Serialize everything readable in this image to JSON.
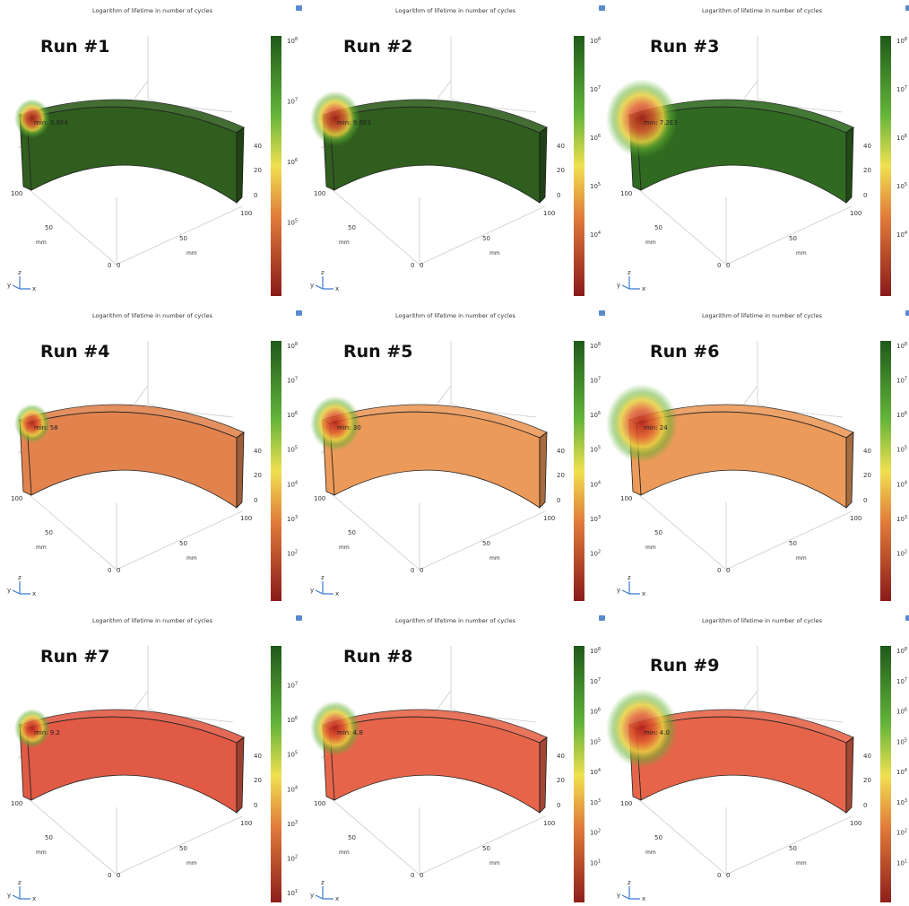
{
  "axes": {
    "z_ticks": [
      "40",
      "20",
      "0"
    ],
    "y_ticks": [
      "100",
      "50",
      "0"
    ],
    "x_ticks": [
      "0",
      "50",
      "100"
    ],
    "unit": "mm",
    "triad": [
      "y",
      "z",
      "x"
    ]
  },
  "panels": [
    {
      "title": "Logarithm of lifetime in number of cycles",
      "run": "Run #1",
      "min": "min: 3.8E4",
      "color": "#2f5e1e",
      "hot": 0.3,
      "ticks": [
        {
          "base": "10",
          "exp": "8"
        },
        {
          "base": "10",
          "exp": "7"
        },
        {
          "base": "10",
          "exp": "6"
        },
        {
          "base": "10",
          "exp": "5"
        }
      ]
    },
    {
      "title": "Logarithm of lifetime in number of cycles",
      "run": "Run #2",
      "min": "min: 9.6E3",
      "color": "#2f5e1e",
      "hot": 0.5,
      "ticks": [
        {
          "base": "10",
          "exp": "8"
        },
        {
          "base": "10",
          "exp": "7"
        },
        {
          "base": "10",
          "exp": "6"
        },
        {
          "base": "10",
          "exp": "5"
        },
        {
          "base": "10",
          "exp": "4"
        }
      ]
    },
    {
      "title": "Logarithm of lifetime in number of cycles",
      "run": "Run #3",
      "min": "min: 7.2E3",
      "color": "#2f6a20",
      "hot": 0.8,
      "ticks": [
        {
          "base": "10",
          "exp": "8"
        },
        {
          "base": "10",
          "exp": "7"
        },
        {
          "base": "10",
          "exp": "6"
        },
        {
          "base": "10",
          "exp": "5"
        },
        {
          "base": "10",
          "exp": "4"
        }
      ]
    },
    {
      "title": "Logarithm of lifetime in number of cycles",
      "run": "Run #4",
      "min": "min: 58",
      "color": "#e2834e",
      "hot": 0.3,
      "ticks": [
        {
          "base": "10",
          "exp": "8"
        },
        {
          "base": "10",
          "exp": "7"
        },
        {
          "base": "10",
          "exp": "6"
        },
        {
          "base": "10",
          "exp": "5"
        },
        {
          "base": "10",
          "exp": "4"
        },
        {
          "base": "10",
          "exp": "3"
        },
        {
          "base": "10",
          "exp": "2"
        }
      ]
    },
    {
      "title": "Logarithm of lifetime in number of cycles",
      "run": "Run #5",
      "min": "min: 30",
      "color": "#ec9a5a",
      "hot": 0.5,
      "ticks": [
        {
          "base": "10",
          "exp": "8"
        },
        {
          "base": "10",
          "exp": "7"
        },
        {
          "base": "10",
          "exp": "6"
        },
        {
          "base": "10",
          "exp": "5"
        },
        {
          "base": "10",
          "exp": "4"
        },
        {
          "base": "10",
          "exp": "3"
        },
        {
          "base": "10",
          "exp": "2"
        }
      ]
    },
    {
      "title": "Logarithm of lifetime in number of cycles",
      "run": "Run #6",
      "min": "min: 24",
      "color": "#ec9a5a",
      "hot": 0.8,
      "ticks": [
        {
          "base": "10",
          "exp": "8"
        },
        {
          "base": "10",
          "exp": "7"
        },
        {
          "base": "10",
          "exp": "6"
        },
        {
          "base": "10",
          "exp": "5"
        },
        {
          "base": "10",
          "exp": "4"
        },
        {
          "base": "10",
          "exp": "3"
        },
        {
          "base": "10",
          "exp": "2"
        }
      ]
    },
    {
      "title": "Logarithm of lifetime in number of cycles",
      "run": "Run #7",
      "min": "min: 9.2",
      "color": "#e05a45",
      "hot": 0.3,
      "ticks": [
        {
          "base": "10",
          "exp": "7"
        },
        {
          "base": "10",
          "exp": "6"
        },
        {
          "base": "10",
          "exp": "5"
        },
        {
          "base": "10",
          "exp": "4"
        },
        {
          "base": "10",
          "exp": "3"
        },
        {
          "base": "10",
          "exp": "2"
        },
        {
          "base": "10",
          "exp": "1"
        }
      ]
    },
    {
      "title": "Logarithm of lifetime in number of cycles",
      "run": "Run #8",
      "min": "min: 4.8",
      "color": "#e6654a",
      "hot": 0.5,
      "ticks": [
        {
          "base": "10",
          "exp": "8"
        },
        {
          "base": "10",
          "exp": "7"
        },
        {
          "base": "10",
          "exp": "6"
        },
        {
          "base": "10",
          "exp": "5"
        },
        {
          "base": "10",
          "exp": "4"
        },
        {
          "base": "10",
          "exp": "3"
        },
        {
          "base": "10",
          "exp": "2"
        },
        {
          "base": "10",
          "exp": "1"
        }
      ]
    },
    {
      "title": "Logarithm of lifetime in number of cycles",
      "run": "Run #9",
      "min": "min: 4.0",
      "color": "#e6654a",
      "hot": 0.8,
      "ticks": [
        {
          "base": "10",
          "exp": "8"
        },
        {
          "base": "10",
          "exp": "7"
        },
        {
          "base": "10",
          "exp": "6"
        },
        {
          "base": "10",
          "exp": "5"
        },
        {
          "base": "10",
          "exp": "4"
        },
        {
          "base": "10",
          "exp": "3"
        },
        {
          "base": "10",
          "exp": "2"
        },
        {
          "base": "10",
          "exp": "1"
        }
      ]
    }
  ]
}
